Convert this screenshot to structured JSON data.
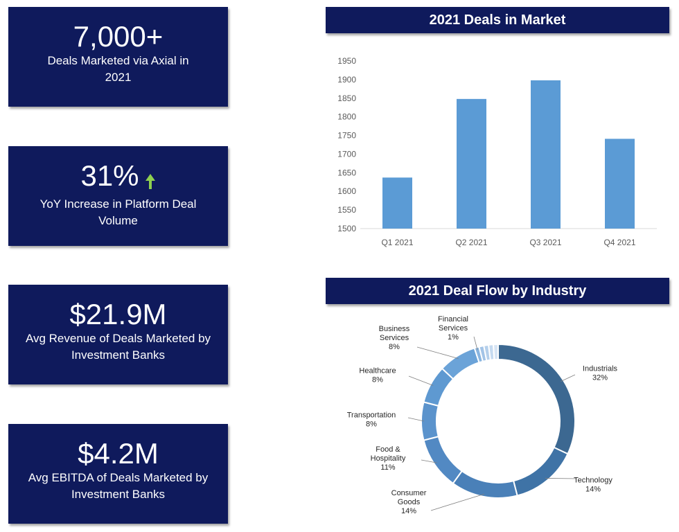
{
  "cards": [
    {
      "value": "7,000+",
      "label": "Deals Marketed via Axial in 2021"
    },
    {
      "value": "31%",
      "label": "YoY Increase in Platform Deal Volume"
    },
    {
      "value": "$21.9M",
      "label": "Avg Revenue of Deals Marketed by Investment Banks"
    },
    {
      "value": "$4.2M",
      "label": "Avg EBITDA of Deals Marketed by Investment Banks"
    }
  ],
  "colors": {
    "card_bg": "#0f1a5c",
    "bar": "#5b9bd5",
    "arrow": "#8ed04f"
  },
  "icons": {
    "trend": "arrow-up-icon"
  },
  "chart_data": [
    {
      "type": "bar",
      "title": "2021 Deals in Market",
      "categories": [
        "Q1 2021",
        "Q2 2021",
        "Q3 2021",
        "Q4 2021"
      ],
      "values": [
        1637,
        1848,
        1898,
        1741
      ],
      "ylim": [
        1500,
        1950
      ],
      "yticks": [
        1500,
        1550,
        1600,
        1650,
        1700,
        1750,
        1800,
        1850,
        1900,
        1950
      ],
      "xlabel": "",
      "ylabel": "",
      "grid": false
    },
    {
      "type": "pie",
      "title": "2021 Deal Flow by Industry",
      "donut": true,
      "slices": [
        {
          "label": "Industrials",
          "value": 32,
          "display": "32%"
        },
        {
          "label": "Technology",
          "value": 14,
          "display": "14%"
        },
        {
          "label": "Consumer Goods",
          "value": 14,
          "display": "14%"
        },
        {
          "label": "Food & Hospitality",
          "value": 11,
          "display": "11%"
        },
        {
          "label": "Transportation",
          "value": 8,
          "display": "8%"
        },
        {
          "label": "Healthcare",
          "value": 8,
          "display": "8%"
        },
        {
          "label": "Business Services",
          "value": 8,
          "display": "8%"
        },
        {
          "label": "Financial Services",
          "value": 1,
          "display": "1%"
        },
        {
          "label": "",
          "value": 1,
          "display": ""
        },
        {
          "label": "",
          "value": 1,
          "display": ""
        },
        {
          "label": "",
          "value": 1,
          "display": ""
        },
        {
          "label": "",
          "value": 1,
          "display": ""
        }
      ]
    }
  ]
}
